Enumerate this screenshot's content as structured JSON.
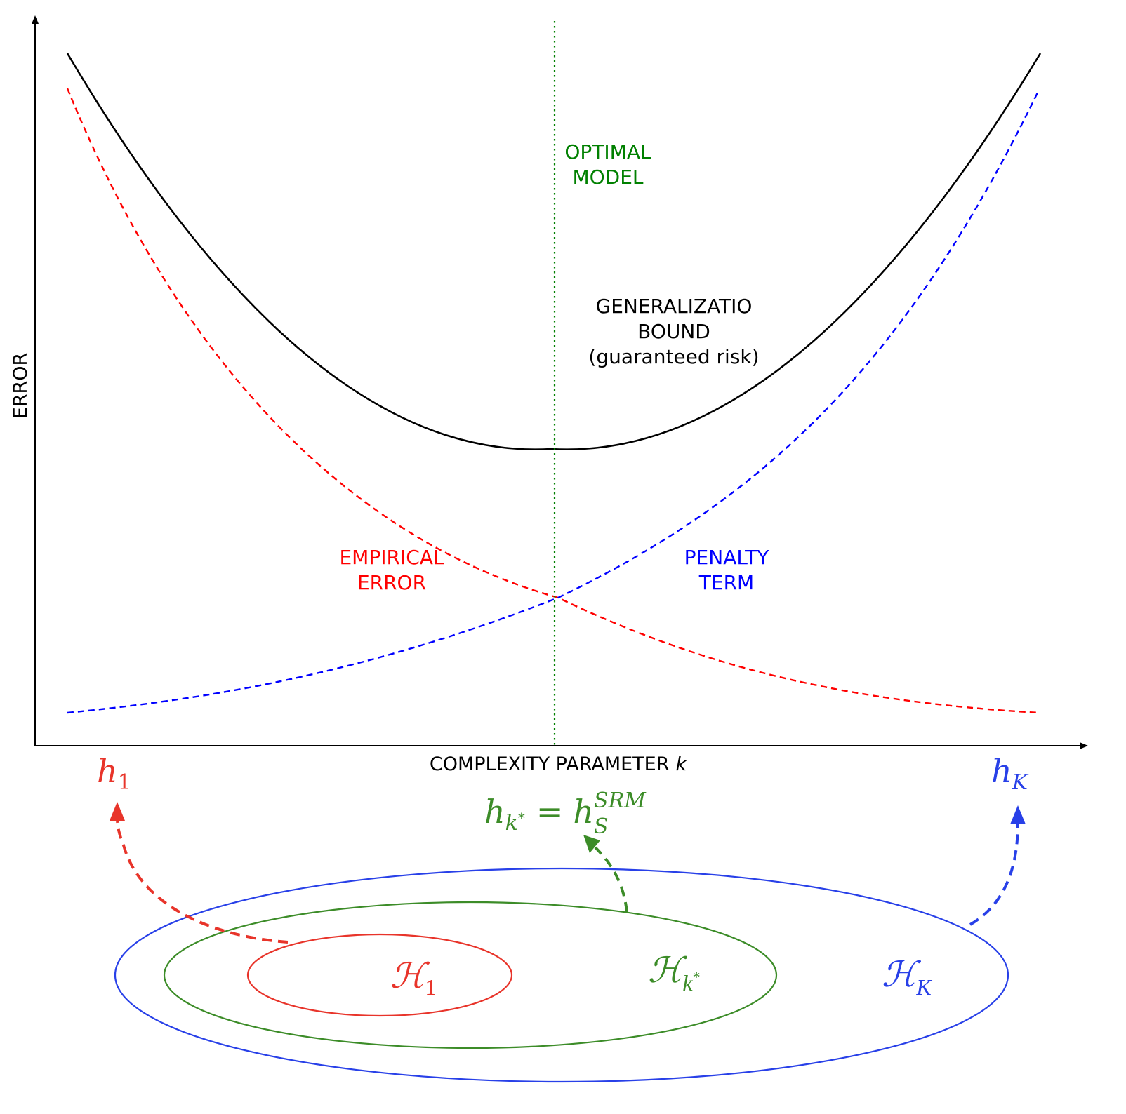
{
  "axes": {
    "y_label": "ERROR",
    "x_label": "COMPLEXITY PARAMETER",
    "x_variable": "k"
  },
  "curve_labels": {
    "optimal": [
      "OPTIMAL",
      "MODEL"
    ],
    "generalization": [
      "GENERALIZATIO",
      "BOUND",
      "(guaranteed risk)"
    ],
    "empirical": [
      "EMPIRICAL",
      "ERROR"
    ],
    "penalty": [
      "PENALTY",
      "TERM"
    ]
  },
  "colors": {
    "generalization": "#000000",
    "empirical": "#ff0000",
    "penalty": "#0000ff",
    "optimal": "#008000",
    "h1": "#e8342a",
    "hk_star": "#3c8c28",
    "hK": "#2840e8"
  },
  "hypotheses": {
    "h1": {
      "base": "h",
      "sub": "1"
    },
    "hK": {
      "base": "h",
      "sub": "K"
    },
    "hk_star": {
      "base": "h",
      "sub": "k",
      "sub_star": "*",
      "eq": "=",
      "rhs_base": "h",
      "rhs_sub": "S",
      "rhs_sup": "SRM"
    }
  },
  "classes": {
    "H1": {
      "base": "ℋ",
      "sub": "1"
    },
    "Hk_star": {
      "base": "ℋ",
      "sub": "k",
      "sub_star": "*"
    },
    "HK": {
      "base": "ℋ",
      "sub": "K"
    }
  }
}
